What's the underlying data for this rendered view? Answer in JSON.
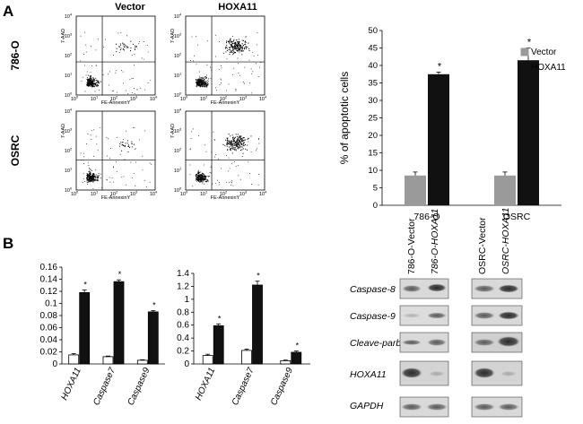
{
  "panels": {
    "a_label": "A",
    "b_label": "B"
  },
  "flow": {
    "col_headers": [
      "Vector",
      "HOXA11"
    ],
    "row_labels": [
      "786-O",
      "OSRC"
    ],
    "x_axis_label": "FE-AnnexinY",
    "y_axis_label": "7-AAD",
    "tick_labels": [
      "10",
      "10",
      "10",
      "10",
      "10"
    ],
    "tick_exponents": [
      "0",
      "1",
      "2",
      "3",
      "4"
    ]
  },
  "blot": {
    "lane_labels_left": [
      "786-O-Vector",
      "786-O-HOXA11"
    ],
    "lane_labels_right": [
      "OSRC-Vector",
      "OSRC-HOXA11"
    ],
    "row_labels": [
      "Caspase-8",
      "Caspase-9",
      "Cleave-parb",
      "HOXA11",
      "GAPDH"
    ]
  },
  "colors": {
    "vector_bar": "#9a9a9a",
    "hoxa11_bar": "#111111",
    "open_bar": "#ffffff",
    "solid_bar": "#111111"
  },
  "chart_data": [
    {
      "id": "apoptosis",
      "type": "bar",
      "title": "",
      "xlabel": "",
      "ylabel": "% of apoptotic cells",
      "ylim": [
        0,
        50
      ],
      "yticks": [
        "0",
        "5",
        "10",
        "15",
        "20",
        "25",
        "30",
        "35",
        "40",
        "45",
        "50"
      ],
      "categories": [
        "786-O",
        "OSRC"
      ],
      "series": [
        {
          "name": "Vector",
          "values": [
            8.5,
            8.5
          ],
          "errors": [
            1.0,
            1.0
          ],
          "significance": [
            "",
            ""
          ]
        },
        {
          "name": "HOXA11",
          "values": [
            37.5,
            41.5
          ],
          "errors": [
            0.6,
            3.5
          ],
          "significance": [
            "*",
            "*"
          ]
        }
      ],
      "legend": "right",
      "grid": false
    },
    {
      "id": "qpcr_786",
      "type": "bar",
      "title": "",
      "xlabel": "",
      "ylabel": "",
      "ylim": [
        0,
        0.16
      ],
      "yticks": [
        "0",
        "0.02",
        "0.04",
        "0.06",
        "0.08",
        "0.1",
        "0.12",
        "0.14",
        "0.16"
      ],
      "categories": [
        "HOXA11",
        "Caspase7",
        "Caspase9"
      ],
      "series": [
        {
          "name": "Vector",
          "values": [
            0.015,
            0.012,
            0.006
          ],
          "errors": [
            0.002,
            0.001,
            0.001
          ],
          "significance": [
            "",
            "",
            ""
          ]
        },
        {
          "name": "HOXA11",
          "values": [
            0.118,
            0.136,
            0.086
          ],
          "errors": [
            0.004,
            0.003,
            0.002
          ],
          "significance": [
            "*",
            "*",
            "*"
          ]
        }
      ],
      "legend": "none",
      "grid": false
    },
    {
      "id": "qpcr_osrc",
      "type": "bar",
      "title": "",
      "xlabel": "",
      "ylabel": "",
      "ylim": [
        0,
        1.4
      ],
      "yticks": [
        "0",
        "0.2",
        "0.4",
        "0.6",
        "0.8",
        "1",
        "1.2",
        "1.4"
      ],
      "categories": [
        "HOXA11",
        "Caspase7",
        "Caspase9"
      ],
      "series": [
        {
          "name": "Vector",
          "values": [
            0.13,
            0.21,
            0.05
          ],
          "errors": [
            0.02,
            0.02,
            0.01
          ],
          "significance": [
            "",
            "",
            ""
          ]
        },
        {
          "name": "HOXA11",
          "values": [
            0.59,
            1.22,
            0.18
          ],
          "errors": [
            0.03,
            0.06,
            0.02
          ],
          "significance": [
            "*",
            "*",
            "*"
          ]
        }
      ],
      "legend": "none",
      "grid": false
    }
  ]
}
